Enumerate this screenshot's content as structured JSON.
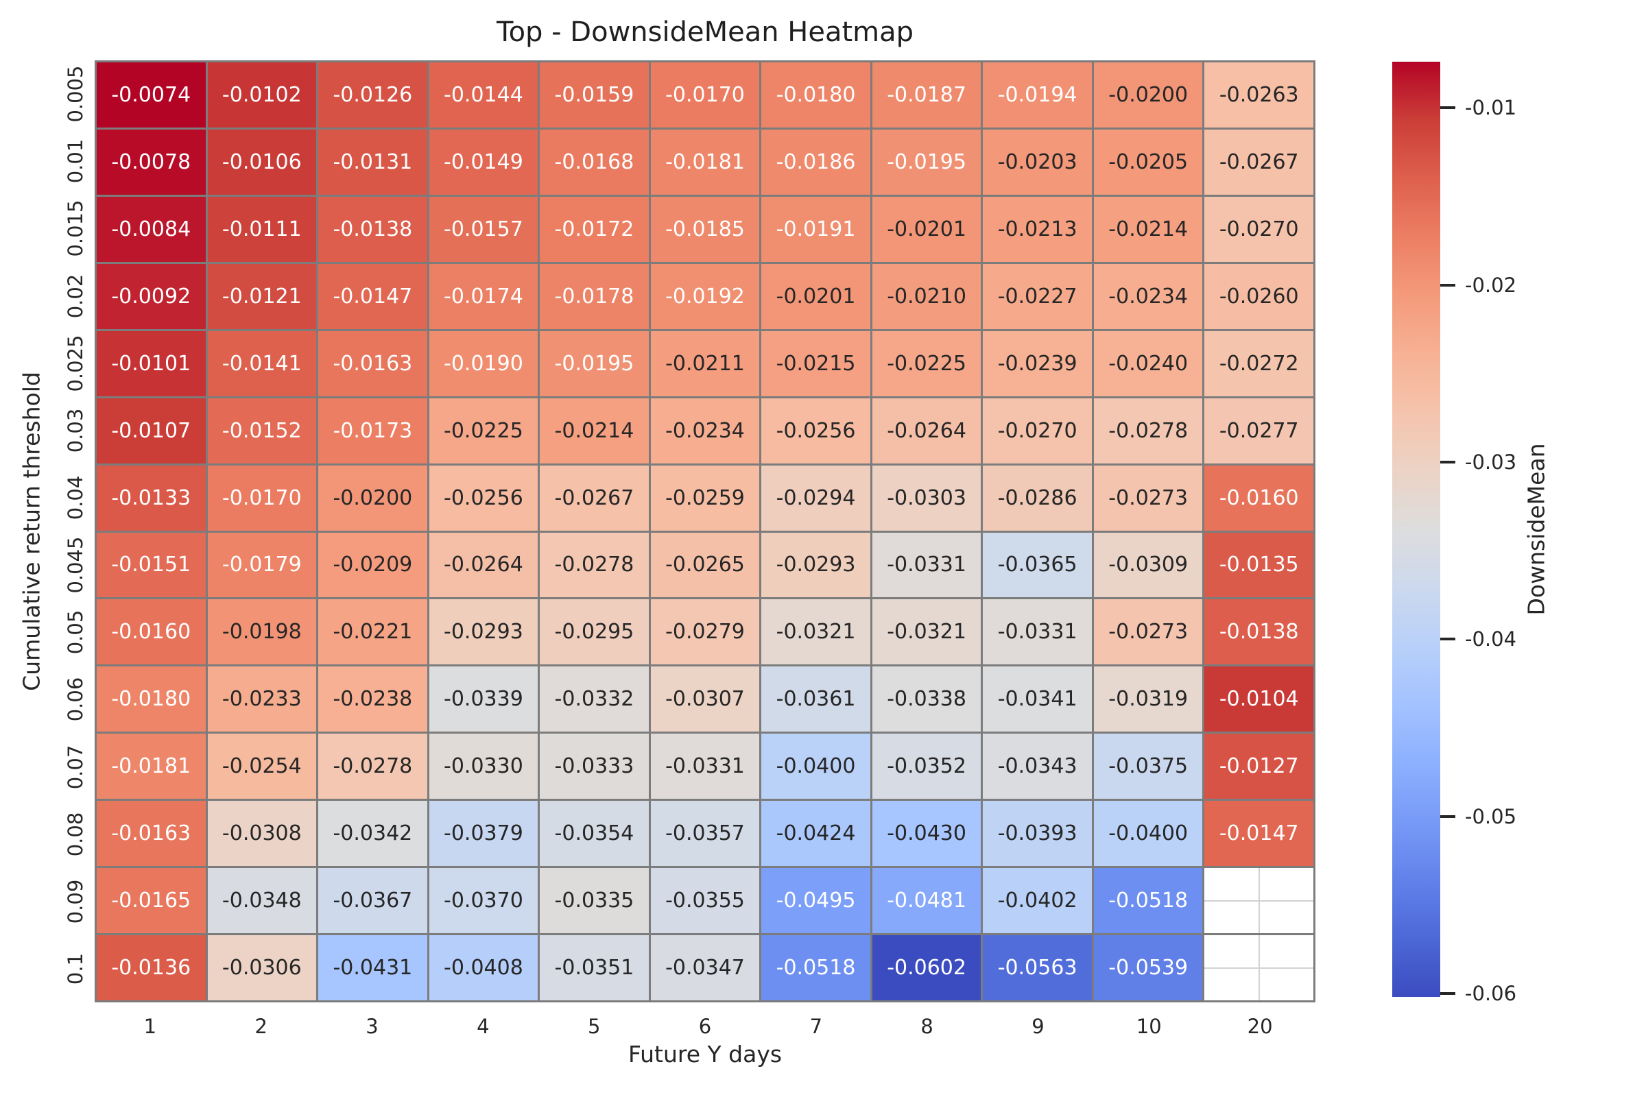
{
  "title": "Top - DownsideMean Heatmap",
  "chart_data": {
    "type": "heatmap",
    "title": "Top - DownsideMean Heatmap",
    "xlabel": "Future Y days",
    "ylabel": "Cumulative return threshold",
    "x_categories": [
      "1",
      "2",
      "3",
      "4",
      "5",
      "6",
      "7",
      "8",
      "9",
      "10",
      "20"
    ],
    "y_categories": [
      "0.005",
      "0.01",
      "0.015",
      "0.02",
      "0.025",
      "0.03",
      "0.04",
      "0.045",
      "0.05",
      "0.06",
      "0.07",
      "0.08",
      "0.09",
      "0.1"
    ],
    "values": [
      [
        -0.0074,
        -0.0102,
        -0.0126,
        -0.0144,
        -0.0159,
        -0.017,
        -0.018,
        -0.0187,
        -0.0194,
        -0.02,
        -0.0263
      ],
      [
        -0.0078,
        -0.0106,
        -0.0131,
        -0.0149,
        -0.0168,
        -0.0181,
        -0.0186,
        -0.0195,
        -0.0203,
        -0.0205,
        -0.0267
      ],
      [
        -0.0084,
        -0.0111,
        -0.0138,
        -0.0157,
        -0.0172,
        -0.0185,
        -0.0191,
        -0.0201,
        -0.0213,
        -0.0214,
        -0.027
      ],
      [
        -0.0092,
        -0.0121,
        -0.0147,
        -0.0174,
        -0.0178,
        -0.0192,
        -0.0201,
        -0.021,
        -0.0227,
        -0.0234,
        -0.026
      ],
      [
        -0.0101,
        -0.0141,
        -0.0163,
        -0.019,
        -0.0195,
        -0.0211,
        -0.0215,
        -0.0225,
        -0.0239,
        -0.024,
        -0.0272
      ],
      [
        -0.0107,
        -0.0152,
        -0.0173,
        -0.0225,
        -0.0214,
        -0.0234,
        -0.0256,
        -0.0264,
        -0.027,
        -0.0278,
        -0.0277
      ],
      [
        -0.0133,
        -0.017,
        -0.02,
        -0.0256,
        -0.0267,
        -0.0259,
        -0.0294,
        -0.0303,
        -0.0286,
        -0.0273,
        -0.016
      ],
      [
        -0.0151,
        -0.0179,
        -0.0209,
        -0.0264,
        -0.0278,
        -0.0265,
        -0.0293,
        -0.0331,
        -0.0365,
        -0.0309,
        -0.0135
      ],
      [
        -0.016,
        -0.0198,
        -0.0221,
        -0.0293,
        -0.0295,
        -0.0279,
        -0.0321,
        -0.0321,
        -0.0331,
        -0.0273,
        -0.0138
      ],
      [
        -0.018,
        -0.0233,
        -0.0238,
        -0.0339,
        -0.0332,
        -0.0307,
        -0.0361,
        -0.0338,
        -0.0341,
        -0.0319,
        -0.0104
      ],
      [
        -0.0181,
        -0.0254,
        -0.0278,
        -0.033,
        -0.0333,
        -0.0331,
        -0.04,
        -0.0352,
        -0.0343,
        -0.0375,
        -0.0127
      ],
      [
        -0.0163,
        -0.0308,
        -0.0342,
        -0.0379,
        -0.0354,
        -0.0357,
        -0.0424,
        -0.043,
        -0.0393,
        -0.04,
        -0.0147
      ],
      [
        -0.0165,
        -0.0348,
        -0.0367,
        -0.037,
        -0.0335,
        -0.0355,
        -0.0495,
        -0.0481,
        -0.0402,
        -0.0518,
        null
      ],
      [
        -0.0136,
        -0.0306,
        -0.0431,
        -0.0408,
        -0.0351,
        -0.0347,
        -0.0518,
        -0.0602,
        -0.0563,
        -0.0539,
        null
      ]
    ],
    "annotation_format_decimals": 4,
    "colorbar": {
      "label": "DownsideMean",
      "ticks": [
        "-0.01",
        "-0.02",
        "-0.03",
        "-0.04",
        "-0.05",
        "-0.06"
      ],
      "tick_values": [
        -0.01,
        -0.02,
        -0.03,
        -0.04,
        -0.05,
        -0.06
      ],
      "vmin": -0.0602,
      "vmax": -0.0074
    },
    "colormap": {
      "name": "coolwarm",
      "stops": [
        [
          0.0,
          [
            59,
            76,
            192
          ]
        ],
        [
          0.0625,
          [
            77,
            104,
            215
          ]
        ],
        [
          0.125,
          [
            98,
            130,
            234
          ]
        ],
        [
          0.1875,
          [
            119,
            154,
            247
          ]
        ],
        [
          0.25,
          [
            141,
            176,
            254
          ]
        ],
        [
          0.3125,
          [
            163,
            194,
            255
          ]
        ],
        [
          0.375,
          [
            184,
            208,
            249
          ]
        ],
        [
          0.4375,
          [
            204,
            217,
            238
          ]
        ],
        [
          0.5,
          [
            221,
            221,
            221
          ]
        ],
        [
          0.5625,
          [
            236,
            211,
            197
          ]
        ],
        [
          0.625,
          [
            245,
            196,
            173
          ]
        ],
        [
          0.6875,
          [
            247,
            177,
            148
          ]
        ],
        [
          0.75,
          [
            244,
            154,
            123
          ]
        ],
        [
          0.8125,
          [
            236,
            127,
            99
          ]
        ],
        [
          0.875,
          [
            222,
            96,
            77
          ]
        ],
        [
          0.9375,
          [
            203,
            62,
            56
          ]
        ],
        [
          1.0,
          [
            180,
            4,
            38
          ]
        ]
      ]
    },
    "colors": {
      "cell_border": "#7c7c7c",
      "nan_cell_background": "#ffffff",
      "nan_gridline": "#d2d2d2",
      "annotation_dark": "#262626",
      "annotation_light": "#ffffff",
      "tick_text": "#262626",
      "background": "#ffffff"
    },
    "grid": "off",
    "legend": "colorbar-right"
  }
}
